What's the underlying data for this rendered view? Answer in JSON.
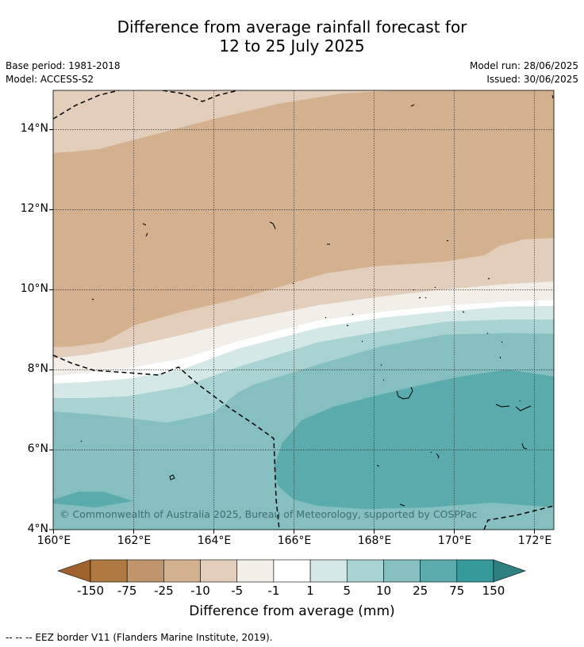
{
  "title_line1": "Difference from average rainfall forecast for",
  "title_line2": "12 to 25 July 2025",
  "meta_left": {
    "base_period": "Base period: 1981-2018",
    "model": "Model: ACCESS-S2"
  },
  "meta_right": {
    "model_run": "Model run: 28/06/2025",
    "issued": "Issued: 30/06/2025"
  },
  "axes": {
    "lat_labels": [
      "14°N",
      "12°N",
      "10°N",
      "8°N",
      "6°N",
      "4°N"
    ],
    "lon_labels": [
      "160°E",
      "162°E",
      "164°E",
      "166°E",
      "168°E",
      "170°E",
      "172°E"
    ]
  },
  "colorbar": {
    "title": "Difference from average (mm)",
    "tick_labels": [
      "-150",
      "-75",
      "-25",
      "-10",
      "-5",
      "-1",
      "1",
      "5",
      "10",
      "25",
      "75",
      "150"
    ],
    "colors": [
      "#a0622c",
      "#b07942",
      "#c0956b",
      "#d3b18f",
      "#e3cebb",
      "#f3eee8",
      "#ffffff",
      "#d3e8e7",
      "#a9d3d3",
      "#85bfbf",
      "#5aabab",
      "#369a9a",
      "#2d8080"
    ]
  },
  "copyright": "© Commonwealth of Australia 2025, Bureau of Meteorology, supported by COSPPac",
  "footnote": "--  --  -- EEZ border V11 (Flanders Marine Institute, 2019)."
}
